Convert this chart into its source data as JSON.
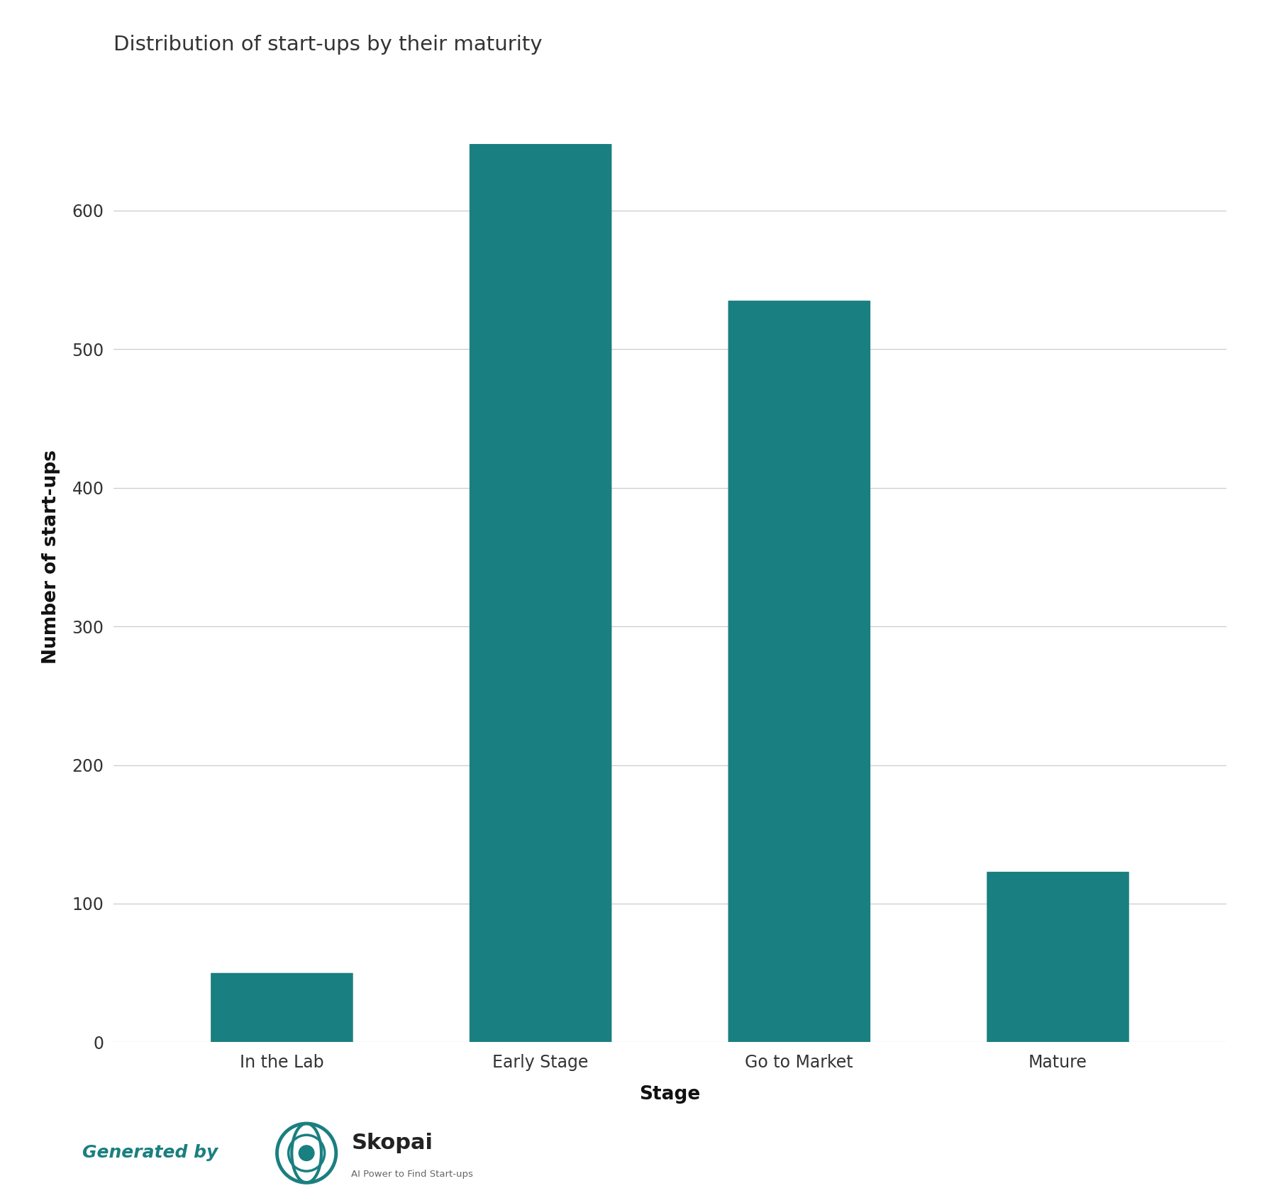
{
  "title": "Distribution of start-ups by their maturity",
  "categories": [
    "In the Lab",
    "Early Stage",
    "Go to Market",
    "Mature"
  ],
  "values": [
    50,
    648,
    535,
    123
  ],
  "bar_color": "#1a7f80",
  "ylabel": "Number of start-ups",
  "xlabel": "Stage",
  "ylim": [
    0,
    700
  ],
  "yticks": [
    0,
    100,
    200,
    300,
    400,
    500,
    600
  ],
  "background_color": "#ffffff",
  "title_fontsize": 21,
  "axis_label_fontsize": 19,
  "tick_fontsize": 17,
  "generated_by_text": "Generated by",
  "generated_by_color": "#1a7f80",
  "skopai_text_color": "#1a7f80",
  "skopai_sub_color": "#555555",
  "bar_width": 0.55,
  "title_color": "#333333",
  "grid_color": "#cccccc",
  "tick_label_color": "#333333"
}
